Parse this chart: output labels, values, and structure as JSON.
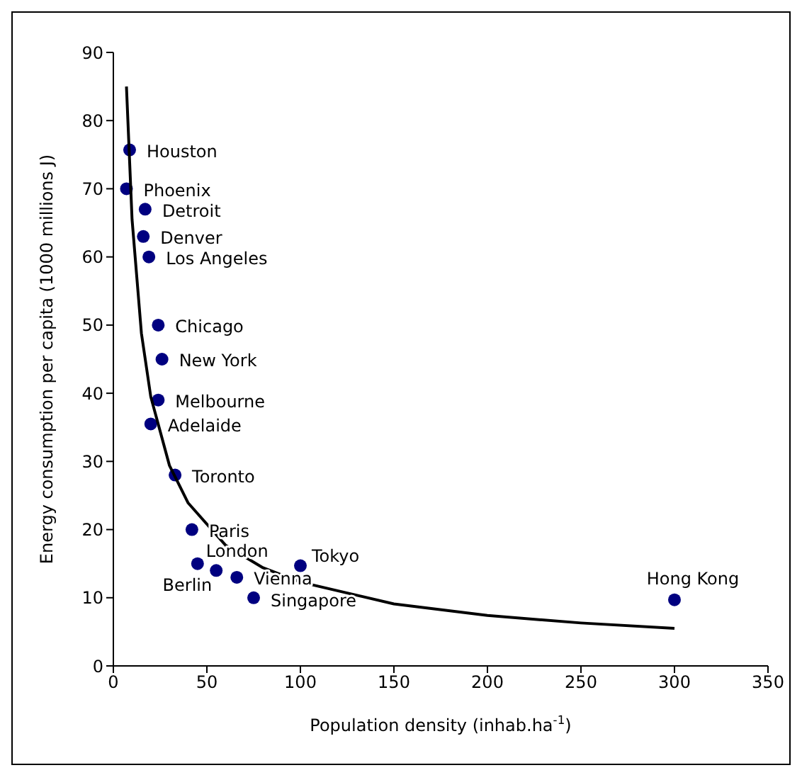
{
  "chart_data": {
    "type": "scatter",
    "xlabel": "Population density (inhab.ha$^{-1}$)",
    "ylabel": "Energy consumption per capita (1000 millions J)",
    "xlim": [
      0,
      350
    ],
    "xticks": [
      0,
      50,
      100,
      150,
      200,
      250,
      300,
      350
    ],
    "ylim": [
      0,
      90
    ],
    "yticks": [
      0,
      10,
      20,
      30,
      40,
      50,
      60,
      70,
      80,
      90
    ],
    "grid": false,
    "legend": false,
    "series": [
      {
        "color": "#000080",
        "marker": "circle",
        "x": [
          8.7,
          7,
          17,
          16,
          19,
          24,
          26,
          24,
          20,
          33,
          42,
          45,
          55,
          66,
          75,
          100,
          300
        ],
        "values": [
          75.7,
          70,
          67,
          63,
          60,
          50,
          45,
          39,
          35.5,
          28,
          20,
          15,
          14,
          13,
          10,
          14.7,
          9.7
        ]
      },
      {
        "type": "line",
        "color": "#000000",
        "marker": "none",
        "line_style": "solid",
        "x": [
          7,
          10,
          15,
          20,
          30,
          40,
          60,
          80,
          100,
          150,
          200,
          250,
          300
        ],
        "values": [
          85,
          65.5,
          48.8,
          39.5,
          29.4,
          23.9,
          17.7,
          14.4,
          12.3,
          9.1,
          7.4,
          6.3,
          5.5
        ]
      }
    ],
    "annotations": [
      {
        "text": "Houston",
        "x": 8.7,
        "y": 75.7
      },
      {
        "text": "Phoenix",
        "x": 7,
        "y": 70
      },
      {
        "text": "Detroit",
        "x": 17,
        "y": 67
      },
      {
        "text": "Denver",
        "x": 16,
        "y": 63
      },
      {
        "text": "Los Angeles",
        "x": 19,
        "y": 60
      },
      {
        "text": "Chicago",
        "x": 24,
        "y": 50
      },
      {
        "text": "New York",
        "x": 26,
        "y": 45
      },
      {
        "text": "Melbourne",
        "x": 24,
        "y": 39
      },
      {
        "text": "Adelaide",
        "x": 20,
        "y": 35.5
      },
      {
        "text": "Toronto",
        "x": 33,
        "y": 28
      },
      {
        "text": "Paris",
        "x": 42,
        "y": 20
      },
      {
        "text": "London",
        "x": 45,
        "y": 15
      },
      {
        "text": "Berlin",
        "x": 55,
        "y": 14
      },
      {
        "text": "Vienna",
        "x": 66,
        "y": 13
      },
      {
        "text": "Singapore",
        "x": 75,
        "y": 10
      },
      {
        "text": "Tokyo",
        "x": 100,
        "y": 14.7
      },
      {
        "text": "Hong Kong",
        "x": 300,
        "y": 9.7
      }
    ]
  }
}
